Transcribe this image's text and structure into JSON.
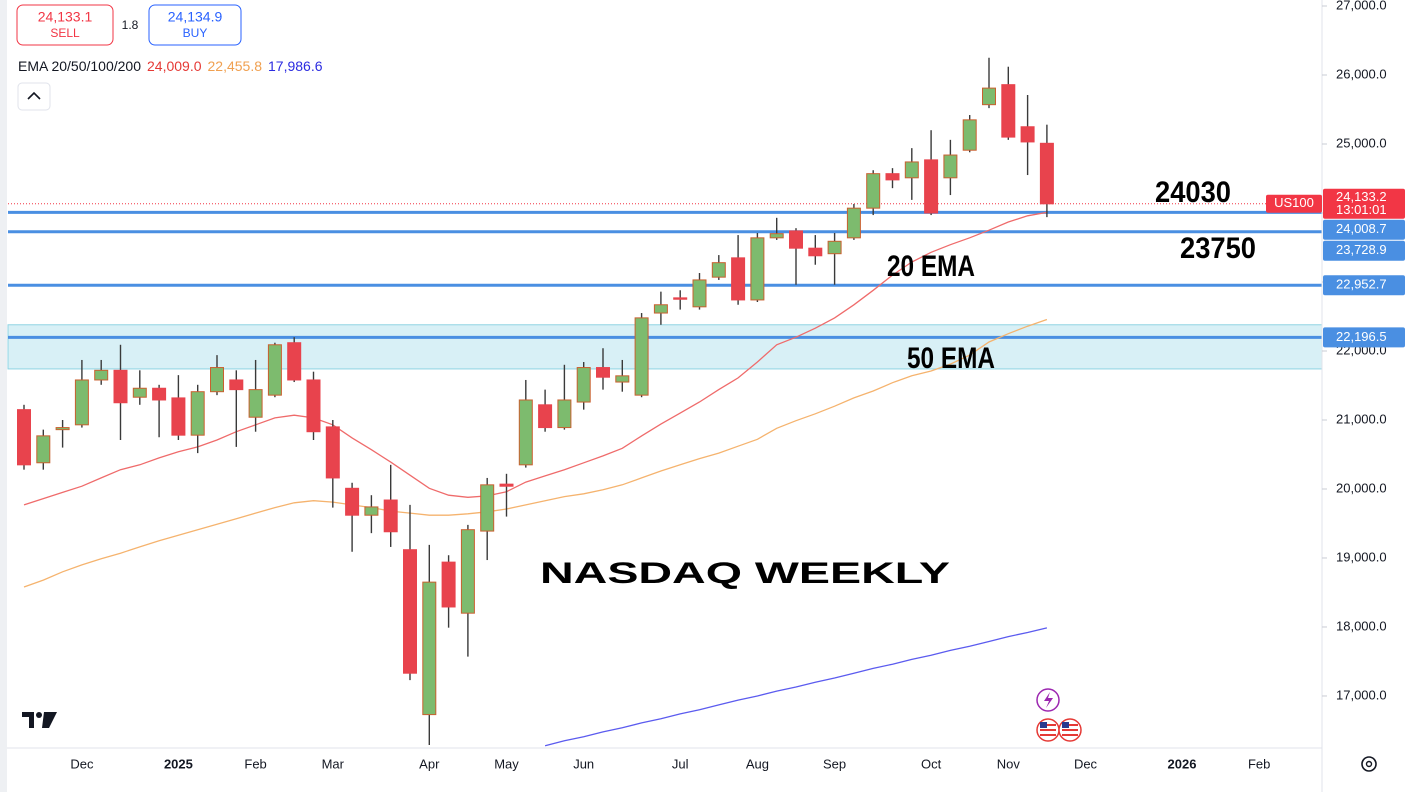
{
  "chart_data": {
    "type": "candlestick",
    "title": "NASDAQ WEEKLY",
    "trade": {
      "sell_price": "24,133.1",
      "sell_label": "SELL",
      "spread": "1.8",
      "buy_price": "24,134.9",
      "buy_label": "BUY"
    },
    "indicator_label": "EMA 20/50/100/200",
    "categories": [
      null,
      null,
      null,
      "Dec",
      null,
      null,
      null,
      null,
      "2025",
      null,
      null,
      null,
      "Feb",
      null,
      null,
      null,
      "Mar",
      null,
      null,
      null,
      null,
      "Apr",
      null,
      null,
      null,
      "May",
      null,
      null,
      null,
      "Jun",
      null,
      null,
      null,
      null,
      "Jul",
      null,
      null,
      null,
      "Aug",
      null,
      null,
      null,
      "Sep",
      null,
      null,
      null,
      null,
      "Oct",
      null,
      null,
      null,
      "Nov",
      null,
      null,
      null,
      "Dec",
      null,
      null,
      null,
      null,
      "2026",
      null,
      null,
      null,
      "Feb",
      null,
      null,
      null
    ],
    "year_labels": [
      "2025",
      "2026"
    ],
    "open": [
      21150,
      20380,
      20860,
      20930,
      21580,
      21720,
      21330,
      21460,
      21320,
      20780,
      21410,
      21580,
      21040,
      21360,
      22120,
      21580,
      20900,
      20010,
      19620,
      19840,
      19120,
      16730,
      18940,
      18200,
      19390,
      20070,
      20350,
      21220,
      20890,
      21260,
      21760,
      21550,
      21360,
      22550,
      22770,
      22640,
      23070,
      23350,
      22740,
      23640,
      23740,
      23490,
      23410,
      23640,
      24070,
      24570,
      24510,
      24770,
      24510,
      24910,
      25570,
      25860,
      25250,
      25010,
      null,
      null,
      null,
      null,
      null,
      null,
      null,
      null,
      null,
      null,
      null,
      null,
      null,
      null
    ],
    "high": [
      21220,
      20860,
      21000,
      21870,
      21870,
      22090,
      21720,
      21510,
      21650,
      21510,
      21940,
      21720,
      21870,
      22120,
      22200,
      21700,
      21000,
      20090,
      19910,
      20350,
      19770,
      19190,
      19040,
      19480,
      20160,
      20220,
      21580,
      21440,
      21800,
      21840,
      22040,
      21870,
      22550,
      22860,
      22880,
      23130,
      23390,
      23680,
      23710,
      23930,
      23780,
      23680,
      23710,
      24130,
      24620,
      24650,
      24940,
      25200,
      25060,
      25420,
      26250,
      26120,
      25710,
      25280,
      null,
      null,
      null,
      null,
      null,
      null,
      null,
      null,
      null,
      null,
      null,
      null,
      null,
      null
    ],
    "low": [
      20280,
      20280,
      20600,
      20890,
      21510,
      20710,
      21220,
      20750,
      20710,
      20520,
      21360,
      20610,
      20830,
      21330,
      21550,
      20710,
      19730,
      19090,
      19360,
      19160,
      17230,
      16290,
      17990,
      17570,
      18970,
      19600,
      20310,
      20830,
      20860,
      21150,
      21440,
      21410,
      21330,
      22380,
      22600,
      22600,
      23030,
      22670,
      22710,
      23610,
      22960,
      23250,
      22960,
      23610,
      23970,
      24360,
      24190,
      23970,
      24260,
      24880,
      25520,
      25060,
      24550,
      23940,
      null,
      null,
      null,
      null,
      null,
      null,
      null,
      null,
      null,
      null,
      null,
      null,
      null,
      null
    ],
    "close": [
      20350,
      20770,
      20890,
      21580,
      21720,
      21250,
      21460,
      21290,
      20780,
      21410,
      21760,
      21440,
      21440,
      22090,
      21580,
      20830,
      20160,
      19620,
      19740,
      19380,
      17330,
      18650,
      18290,
      19410,
      20060,
      20040,
      21290,
      20890,
      21290,
      21760,
      21620,
      21640,
      22480,
      22670,
      22750,
      23030,
      23280,
      22740,
      23640,
      23700,
      23490,
      23380,
      23590,
      24070,
      24570,
      24480,
      24740,
      24000,
      24840,
      25350,
      25810,
      25100,
      25030,
      24133,
      null,
      null,
      null,
      null,
      null,
      null,
      null,
      null,
      null,
      null,
      null,
      null,
      null,
      null
    ],
    "up_color": "#7dbb6e",
    "up_border": "#c9602f",
    "down_color": "#e8434d",
    "wick_color": "#3a3a3a",
    "series": [
      {
        "color": "#ef6b6b",
        "last_label": "24,009.0",
        "label_color": "#e53935",
        "values": [
          19770,
          19860,
          19950,
          20040,
          20160,
          20280,
          20350,
          20450,
          20540,
          20610,
          20710,
          20830,
          20930,
          21030,
          21070,
          21030,
          20930,
          20740,
          20570,
          20390,
          20200,
          20010,
          19910,
          19880,
          19900,
          19960,
          20100,
          20190,
          20280,
          20380,
          20480,
          20590,
          20770,
          20940,
          21100,
          21260,
          21440,
          21610,
          21840,
          22090,
          22200,
          22330,
          22480,
          22670,
          22880,
          23100,
          23290,
          23430,
          23540,
          23640,
          23750,
          23870,
          23960,
          24009,
          null,
          null,
          null,
          null,
          null,
          null,
          null,
          null,
          null,
          null,
          null,
          null,
          null,
          null
        ]
      },
      {
        "color": "#f5b36e",
        "last_label": "22,455.8",
        "label_color": "#f0a050",
        "values": [
          18580,
          18680,
          18800,
          18900,
          18990,
          19070,
          19160,
          19250,
          19330,
          19410,
          19490,
          19570,
          19650,
          19730,
          19800,
          19830,
          19810,
          19770,
          19730,
          19680,
          19650,
          19620,
          19620,
          19640,
          19670,
          19710,
          19770,
          19830,
          19890,
          19930,
          19990,
          20060,
          20160,
          20260,
          20350,
          20440,
          20520,
          20620,
          20720,
          20880,
          20990,
          21090,
          21200,
          21320,
          21420,
          21540,
          21640,
          21710,
          21810,
          21940,
          22130,
          22250,
          22360,
          22456,
          null,
          null,
          null,
          null,
          null,
          null,
          null,
          null,
          null,
          null,
          null,
          null,
          null,
          null
        ]
      },
      {
        "color": "#5b5bef",
        "last_label": "17,986.6",
        "label_color": "#2b2be0",
        "values": [
          null,
          null,
          null,
          null,
          null,
          null,
          null,
          null,
          null,
          null,
          null,
          null,
          null,
          null,
          null,
          null,
          null,
          null,
          null,
          null,
          null,
          null,
          null,
          null,
          null,
          null,
          null,
          16280,
          16350,
          16410,
          16480,
          16540,
          16610,
          16670,
          16740,
          16800,
          16870,
          16940,
          17000,
          17070,
          17130,
          17200,
          17260,
          17330,
          17400,
          17460,
          17530,
          17590,
          17660,
          17720,
          17790,
          17860,
          17920,
          17987,
          null,
          null,
          null,
          null,
          null,
          null,
          null,
          null,
          null,
          null,
          null,
          null,
          null,
          null
        ]
      }
    ],
    "ylim": [
      16246,
      27087
    ],
    "yticks": [
      {
        "value": 17000,
        "label": "17,000.0"
      },
      {
        "value": 18000,
        "label": "18,000.0"
      },
      {
        "value": 19000,
        "label": "19,000.0"
      },
      {
        "value": 20000,
        "label": "20,000.0"
      },
      {
        "value": 21000,
        "label": "21,000.0"
      },
      {
        "value": 22000,
        "label": "22,000.0"
      },
      {
        "value": 23000,
        "label": "23,000.0"
      },
      {
        "value": 24000,
        "label": "24,000.0"
      },
      {
        "value": 25000,
        "label": "25,000.0"
      },
      {
        "value": 26000,
        "label": "26,000.0"
      },
      {
        "value": 27000,
        "label": "27,000.0"
      }
    ],
    "last_price": {
      "value": 24133.2,
      "label": "24,133.2",
      "countdown": "13:01:01",
      "symbol": "US100",
      "color": "#f23645"
    },
    "levels": [
      {
        "value": 24008.7,
        "label": "24,008.7"
      },
      {
        "value": 23728.9,
        "label": "23,728.9"
      },
      {
        "value": 22952.7,
        "label": "22,952.7"
      },
      {
        "value": 22196.5,
        "label": "22,196.5"
      }
    ],
    "level_color": "#4a8fe2",
    "zone": [
      21740,
      22380
    ],
    "zone_color": "#d8f0f6",
    "annotations": [
      "24030",
      "23750",
      "20 EMA",
      "50 EMA"
    ]
  }
}
